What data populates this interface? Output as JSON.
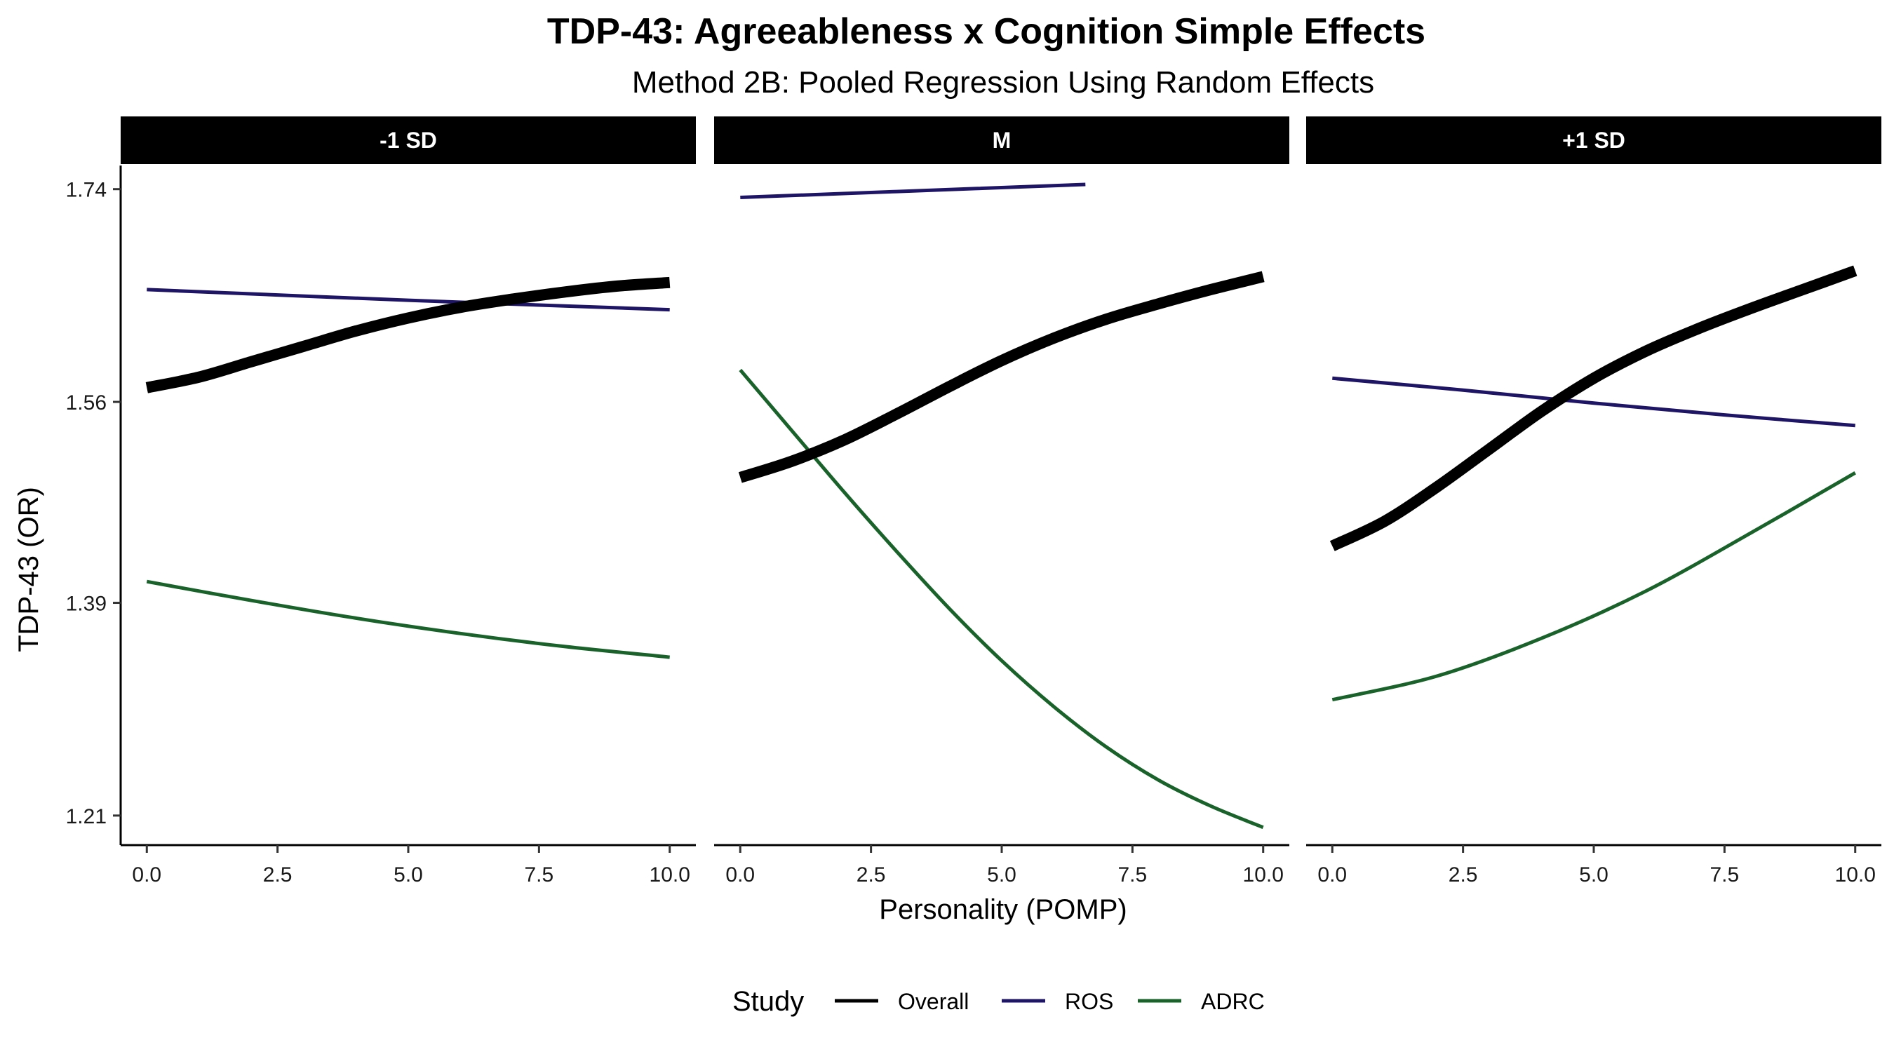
{
  "chart_data": {
    "type": "line",
    "title": "TDP-43: Agreeableness x Cognition Simple Effects",
    "subtitle": "Method 2B: Pooled Regression Using Random Effects",
    "xlabel": "Personality (POMP)",
    "ylabel": "TDP-43 (OR)",
    "xlim": [
      -0.5,
      10.5
    ],
    "ylim": [
      1.185,
      1.76
    ],
    "x_ticks": [
      0,
      2.5,
      5,
      7.5,
      10
    ],
    "x_tick_labels": [
      "0.0",
      "2.5",
      "5.0",
      "7.5",
      "10.0"
    ],
    "y_ticks": [
      1.21,
      1.39,
      1.56,
      1.74
    ],
    "y_tick_labels": [
      "1.21",
      "1.39",
      "1.56",
      "1.74"
    ],
    "grid": false,
    "legend": {
      "title": "Study",
      "position": "bottom",
      "entries": [
        "Overall",
        "ROS",
        "ADRC"
      ]
    },
    "colors": {
      "Overall": "#000000",
      "ROS": "#1f1566",
      "ADRC": "#19632b"
    },
    "panels": [
      {
        "label": "-1 SD",
        "series": [
          {
            "name": "Overall",
            "x": [
              0,
              1,
              2,
              3,
              4,
              5,
              6,
              7,
              8,
              9,
              10
            ],
            "values": [
              1.572,
              1.581,
              1.594,
              1.607,
              1.62,
              1.631,
              1.64,
              1.647,
              1.653,
              1.658,
              1.661
            ]
          },
          {
            "name": "ROS",
            "x": [
              0,
              5,
              10
            ],
            "values": [
              1.655,
              1.646,
              1.638
            ]
          },
          {
            "name": "ADRC",
            "x": [
              0,
              2,
              4,
              6,
              8,
              10
            ],
            "values": [
              1.408,
              1.392,
              1.377,
              1.364,
              1.353,
              1.344
            ]
          }
        ]
      },
      {
        "label": "M",
        "series": [
          {
            "name": "Overall",
            "x": [
              0,
              1,
              2,
              3,
              4,
              5,
              6,
              7,
              8,
              9,
              10
            ],
            "values": [
              1.496,
              1.51,
              1.528,
              1.55,
              1.573,
              1.595,
              1.614,
              1.63,
              1.643,
              1.655,
              1.666
            ]
          },
          {
            "name": "ROS",
            "x": [
              0,
              3,
              6.6
            ],
            "values": [
              1.733,
              1.738,
              1.744
            ]
          },
          {
            "name": "ADRC",
            "x": [
              0,
              1,
              2,
              3,
              4,
              5,
              6,
              7,
              8,
              9,
              10
            ],
            "values": [
              1.587,
              1.535,
              1.483,
              1.433,
              1.385,
              1.341,
              1.302,
              1.268,
              1.24,
              1.218,
              1.2
            ]
          }
        ]
      },
      {
        "label": "+1 SD",
        "series": [
          {
            "name": "Overall",
            "x": [
              0,
              1,
              2,
              3,
              4,
              5,
              6,
              7,
              8,
              9,
              10
            ],
            "values": [
              1.438,
              1.459,
              1.488,
              1.52,
              1.552,
              1.58,
              1.603,
              1.622,
              1.639,
              1.655,
              1.671
            ]
          },
          {
            "name": "ROS",
            "x": [
              0,
              2.5,
              5,
              7.5,
              10
            ],
            "values": [
              1.58,
              1.57,
              1.559,
              1.549,
              1.54
            ]
          },
          {
            "name": "ADRC",
            "x": [
              0,
              2,
              4,
              6,
              8,
              10
            ],
            "values": [
              1.308,
              1.328,
              1.36,
              1.4,
              1.449,
              1.5
            ]
          }
        ]
      }
    ]
  }
}
